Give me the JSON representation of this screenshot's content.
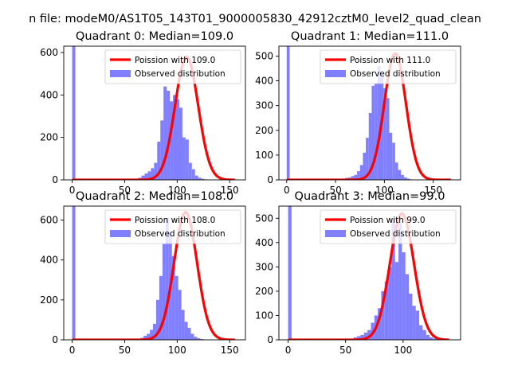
{
  "figure_title": "n file: modeM0/AS1T05_143T01_9000005830_42912cztM0_level2_quad_clean",
  "colors": {
    "poisson": "#ff0000",
    "observed": "#7f7fff"
  },
  "chart_data": [
    {
      "type": "bar",
      "title": "Quadrant 0: Median=109.0",
      "xlim": [
        -8,
        165
      ],
      "ylim": [
        0,
        630
      ],
      "xticks": [
        0,
        50,
        100,
        150
      ],
      "yticks": [
        0,
        200,
        400,
        600
      ],
      "zero_bin_count": 630,
      "bins": {
        "start": 60,
        "width": 3,
        "counts": [
          5,
          10,
          20,
          30,
          40,
          55,
          80,
          180,
          280,
          440,
          420,
          370,
          400,
          380,
          340,
          200,
          190,
          80,
          50,
          20,
          10,
          5,
          2
        ]
      },
      "poisson_mean": 109.0,
      "poisson_peak": 580,
      "poisson_range": [
        0,
        155
      ],
      "legend": [
        "Poission with 109.0",
        "Observed distribution"
      ]
    },
    {
      "type": "bar",
      "title": "Quadrant 1: Median=111.0",
      "xlim": [
        -8,
        178
      ],
      "ylim": [
        0,
        540
      ],
      "xticks": [
        0,
        50,
        100,
        150
      ],
      "yticks": [
        0,
        100,
        200,
        300,
        400,
        500
      ],
      "zero_bin_count": 540,
      "bins": {
        "start": 57,
        "width": 3,
        "counts": [
          5,
          8,
          10,
          15,
          20,
          35,
          60,
          110,
          170,
          270,
          380,
          390,
          460,
          420,
          370,
          330,
          190,
          150,
          70,
          40,
          20,
          10,
          5,
          2
        ]
      },
      "poisson_mean": 111.0,
      "poisson_peak": 510,
      "poisson_range": [
        0,
        168
      ],
      "legend": [
        "Poission with 111.0",
        "Observed distribution"
      ]
    },
    {
      "type": "bar",
      "title": "Quadrant 2: Median=108.0",
      "xlim": [
        -8,
        165
      ],
      "ylim": [
        0,
        670
      ],
      "xticks": [
        0,
        50,
        100,
        150
      ],
      "yticks": [
        0,
        200,
        400,
        600
      ],
      "zero_bin_count": 670,
      "bins": {
        "start": 62,
        "width": 3,
        "counts": [
          5,
          10,
          20,
          30,
          50,
          80,
          200,
          320,
          480,
          610,
          540,
          420,
          320,
          250,
          150,
          90,
          60,
          30,
          15,
          8,
          4,
          2
        ]
      },
      "poisson_mean": 108.0,
      "poisson_peak": 640,
      "poisson_range": [
        0,
        155
      ],
      "legend": [
        "Poission with 108.0",
        "Observed distribution"
      ]
    },
    {
      "type": "bar",
      "title": "Quadrant 3: Median=99.0",
      "xlim": [
        -8,
        150
      ],
      "ylim": [
        0,
        550
      ],
      "xticks": [
        0,
        50,
        100
      ],
      "yticks": [
        0,
        100,
        200,
        300,
        400,
        500
      ],
      "zero_bin_count": 550,
      "bins": {
        "start": 54,
        "width": 3,
        "counts": [
          5,
          10,
          15,
          20,
          30,
          40,
          70,
          100,
          130,
          200,
          240,
          300,
          500,
          320,
          480,
          360,
          270,
          190,
          140,
          120,
          60,
          40,
          20,
          10,
          5
        ]
      },
      "poisson_mean": 99.0,
      "poisson_peak": 520,
      "poisson_range": [
        0,
        140
      ],
      "legend": [
        "Poission with 99.0",
        "Observed distribution"
      ]
    }
  ]
}
